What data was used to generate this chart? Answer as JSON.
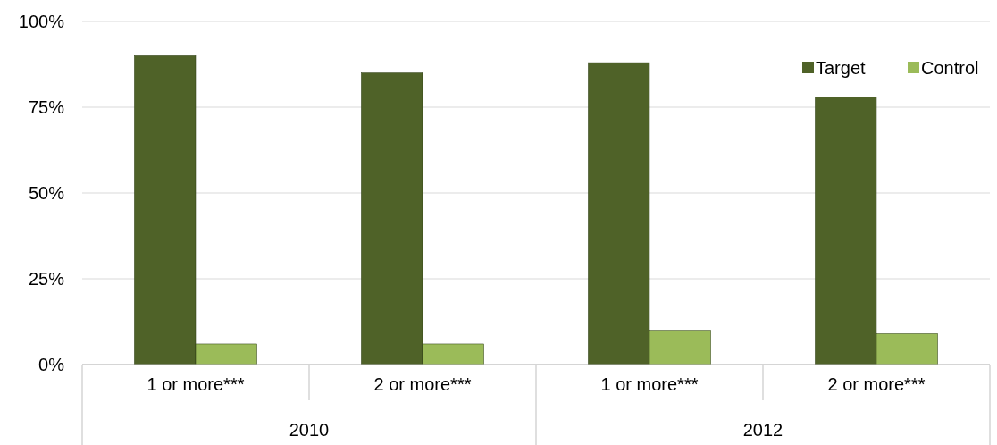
{
  "chart_data": {
    "type": "bar",
    "categories": [
      "1 or more***",
      "2 or more***",
      "1 or more***",
      "2 or more***"
    ],
    "series": [
      {
        "name": "Target",
        "color": "#4f6228",
        "values": [
          90,
          85,
          88,
          78
        ]
      },
      {
        "name": "Control",
        "color": "#9bbb59",
        "values": [
          6,
          6,
          10,
          9
        ]
      }
    ],
    "annotations": [
      "2010",
      "2012"
    ],
    "ylim": [
      0,
      100
    ],
    "yticks": [
      {
        "value": 0,
        "label": "0%"
      },
      {
        "value": 25,
        "label": "25%"
      },
      {
        "value": 50,
        "label": "50%"
      },
      {
        "value": 75,
        "label": "75%"
      },
      {
        "value": 100,
        "label": "100%"
      }
    ],
    "grid": "y",
    "legend": "top right"
  }
}
